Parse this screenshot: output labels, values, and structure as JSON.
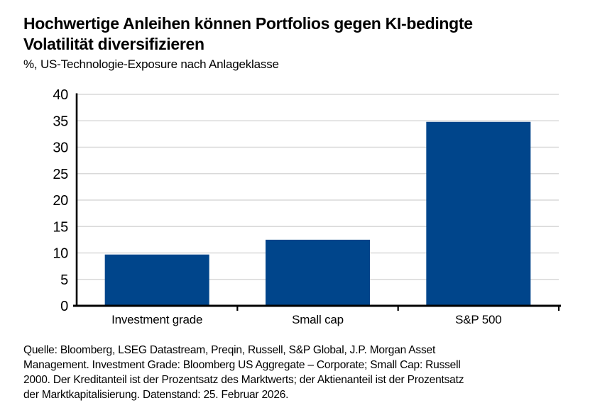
{
  "header": {
    "title_lines": [
      "Hochwertige Anleihen können Portfolios gegen KI-bedingte",
      "Volatilität diversifizieren"
    ],
    "subtitle": "%, US-Technologie-Exposure nach Anlageklasse"
  },
  "chart_data": {
    "type": "bar",
    "title": "Hochwertige Anleihen können Portfolios gegen KI-bedingte Volatilität diversifizieren",
    "subtitle": "%, US-Technologie-Exposure nach Anlageklasse",
    "categories": [
      "Investment grade",
      "Small cap",
      "S&P 500"
    ],
    "values": [
      9.7,
      12.5,
      34.8
    ],
    "xlabel": "",
    "ylabel": "%",
    "ylim": [
      0,
      40
    ],
    "ytick_step": 5,
    "yticks": [
      0,
      5,
      10,
      15,
      20,
      25,
      30,
      35,
      40
    ],
    "grid": true,
    "legend": false,
    "bar_color": "#00458B",
    "gridline_color": "#D9D9D9",
    "axis_color": "#000000",
    "label_color": "#000000"
  },
  "footer": {
    "lines": [
      "Quelle: Bloomberg, LSEG Datastream, Preqin, Russell, S&P Global, J.P. Morgan Asset",
      "Management. Investment Grade: Bloomberg US Aggregate – Corporate; Small Cap: Russell",
      "2000. Der Kreditanteil ist der Prozentsatz des Marktwerts; der Aktienanteil ist der Prozentsatz",
      "der Marktkapitalisierung. Datenstand: 25. Februar 2026."
    ]
  }
}
